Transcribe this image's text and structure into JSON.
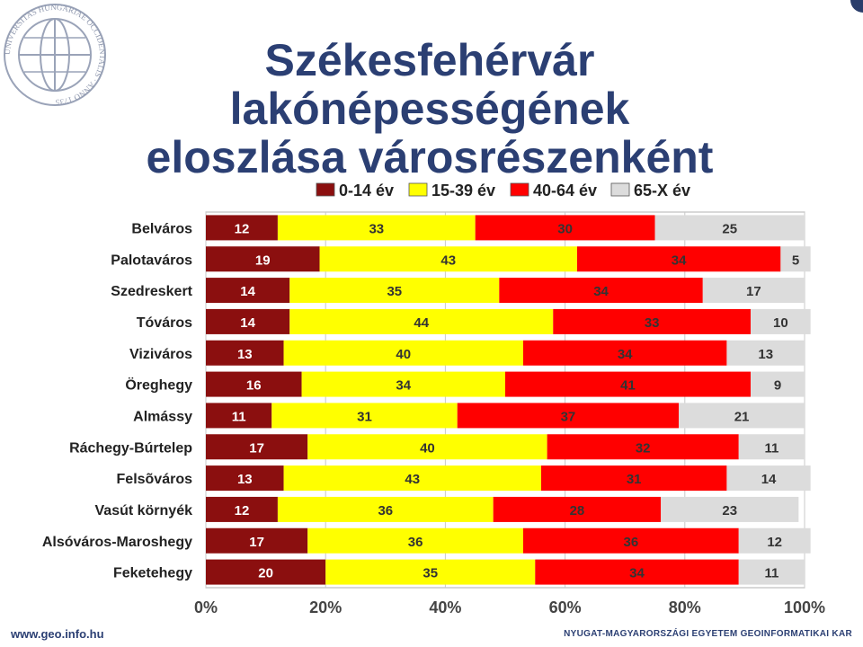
{
  "slide": {
    "title_line1": "Székesfehérvár lakónépességének",
    "title_line2": "eloszlása városrészenként",
    "footer_left": "www.geo.info.hu",
    "footer_right": "NYUGAT-MAGYARORSZÁGI EGYETEM GEOINFORMATIKAI KAR",
    "logo_icon": "university-seal-icon",
    "logo_text": "UNIVERSITAS HUNGARIAE OCCIDENTALIS · ANNO 1735"
  },
  "chart_data": {
    "type": "bar",
    "orientation": "horizontal",
    "stacked": "percent",
    "categories": [
      "Belváros",
      "Palotaváros",
      "Szedreskert",
      "Tóváros",
      "Viziváros",
      "Öreghegy",
      "Almássy",
      "Ráchegy-Búrtelep",
      "Felsõváros",
      "Vasút környék",
      "Alsóváros-Maroshegy",
      "Feketehegy"
    ],
    "series": [
      {
        "name": "0-14 év",
        "color": "#8b0f0f",
        "values": [
          12,
          19,
          14,
          14,
          13,
          16,
          11,
          17,
          13,
          12,
          17,
          20
        ]
      },
      {
        "name": "15-39 év",
        "color": "#ffff00",
        "values": [
          33,
          43,
          35,
          44,
          40,
          34,
          31,
          40,
          43,
          36,
          36,
          35
        ]
      },
      {
        "name": "40-64 év",
        "color": "#ff0000",
        "values": [
          30,
          34,
          34,
          33,
          34,
          41,
          37,
          32,
          31,
          28,
          36,
          34
        ]
      },
      {
        "name": "65-X év",
        "color": "#dcdcdc",
        "values": [
          25,
          5,
          17,
          10,
          13,
          9,
          21,
          11,
          14,
          23,
          12,
          11
        ]
      }
    ],
    "xlim": [
      0,
      100
    ],
    "xticks": [
      "0%",
      "20%",
      "40%",
      "60%",
      "80%",
      "100%"
    ],
    "grid": true,
    "legend_position": "top",
    "xlabel": "",
    "ylabel": ""
  }
}
